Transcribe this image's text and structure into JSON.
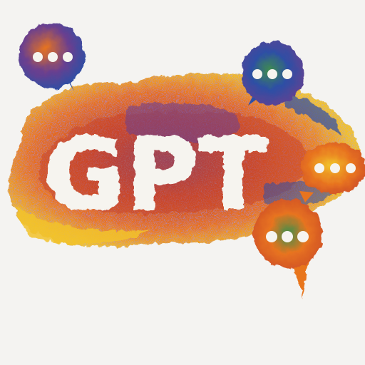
{
  "artwork": {
    "wordmark": "GPT",
    "colors": {
      "background": "#f4f3f1",
      "orange": "#e8741f",
      "red": "#c8452a",
      "yellow": "#f2c22a",
      "blue": "#2d4fa5",
      "purple": "#6a3f8f",
      "green": "#3f8f4a",
      "letters": "#f6f4ef"
    },
    "bubbles": [
      {
        "name": "top-left-chat-bubble",
        "dots": 3
      },
      {
        "name": "top-right-chat-bubble",
        "dots": 3
      },
      {
        "name": "right-chat-bubble",
        "dots": 3
      },
      {
        "name": "bottom-chat-bubble",
        "dots": 3
      }
    ]
  }
}
